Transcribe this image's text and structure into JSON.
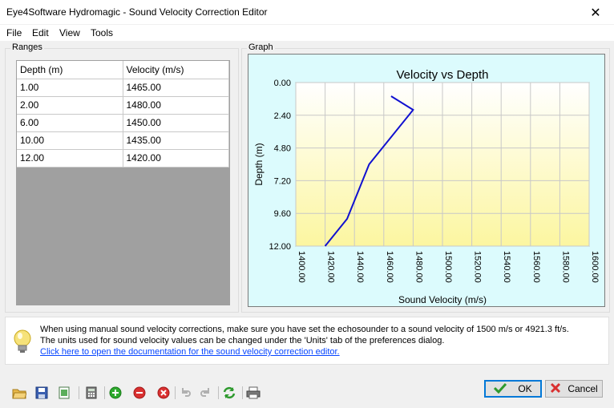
{
  "window": {
    "title": "Eye4Software Hydromagic - Sound Velocity Correction Editor",
    "close_glyph": "✕"
  },
  "menu": [
    "File",
    "Edit",
    "View",
    "Tools"
  ],
  "ranges": {
    "title": "Ranges",
    "headers": [
      "Depth (m)",
      "Velocity (m/s)"
    ],
    "rows": [
      [
        "1.00",
        "1465.00"
      ],
      [
        "2.00",
        "1480.00"
      ],
      [
        "6.00",
        "1450.00"
      ],
      [
        "10.00",
        "1435.00"
      ],
      [
        "12.00",
        "1420.00"
      ]
    ]
  },
  "graph": {
    "title": "Graph"
  },
  "chart_data": {
    "type": "line",
    "title": "Velocity vs Depth",
    "xlabel": "Sound Velocity (m/s)",
    "ylabel": "Depth (m)",
    "xlim": [
      1400,
      1600
    ],
    "ylim": [
      0,
      12
    ],
    "x_ticks": [
      "1400.00",
      "1420.00",
      "1440.00",
      "1460.00",
      "1480.00",
      "1500.00",
      "1520.00",
      "1540.00",
      "1560.00",
      "1580.00",
      "1600.00"
    ],
    "y_ticks": [
      "0.00",
      "2.40",
      "4.80",
      "7.20",
      "9.60",
      "12.00"
    ],
    "y_inverted": true,
    "grid": true,
    "series": [
      {
        "x": [
          1465,
          1480,
          1450,
          1435,
          1420
        ],
        "y": [
          1,
          2,
          6,
          10,
          12
        ],
        "color": "#1010d0"
      }
    ]
  },
  "info": {
    "line1": "When using manual sound velocity corrections, make sure you have set the echosounder to a sound velocity of 1500 m/s or 4921.3 ft/s.",
    "line2": "The units used for sound velocity values can be changed under the 'Units' tab of the preferences dialog.",
    "link": "Click here to open the documentation for the sound velocity correction editor."
  },
  "buttons": {
    "ok": "OK",
    "cancel": "Cancel"
  }
}
